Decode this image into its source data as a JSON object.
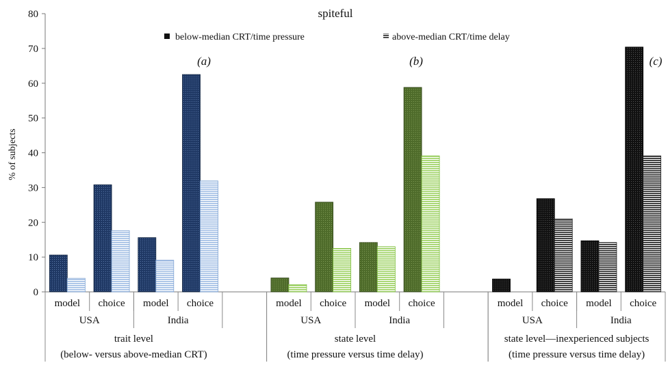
{
  "chart_data": {
    "type": "bar",
    "title": "spiteful",
    "ylabel": "% of subjects",
    "ylim": [
      0,
      80
    ],
    "yticks": [
      0,
      10,
      20,
      30,
      40,
      50,
      60,
      70,
      80
    ],
    "legend": {
      "position": "top-center",
      "entries": [
        {
          "label": "below-median CRT/time pressure",
          "marker": "solid dark square"
        },
        {
          "label": "above-median CRT/time delay",
          "marker": "horizontal stripes"
        }
      ]
    },
    "panels": [
      {
        "label": "(a)",
        "group_label_line1": "trait level",
        "group_label_line2": "(below- versus above-median CRT)",
        "colors": {
          "primary": "#1f3864",
          "secondary": "#a9c4e8"
        },
        "countries": [
          {
            "name": "USA",
            "categories": [
              {
                "name": "model",
                "values": [
                  10.6,
                  3.9
                ]
              },
              {
                "name": "choice",
                "values": [
                  30.8,
                  17.6
                ]
              }
            ]
          },
          {
            "name": "India",
            "categories": [
              {
                "name": "model",
                "values": [
                  15.6,
                  9.1
                ]
              },
              {
                "name": "choice",
                "values": [
                  62.5,
                  31.9
                ]
              }
            ]
          }
        ]
      },
      {
        "label": "(b)",
        "group_label_line1": "state level",
        "group_label_line2": "(time pressure versus time delay)",
        "colors": {
          "primary": "#4e6b2a",
          "secondary": "#a4d36b"
        },
        "countries": [
          {
            "name": "USA",
            "categories": [
              {
                "name": "model",
                "values": [
                  4.0,
                  2.1
                ]
              },
              {
                "name": "choice",
                "values": [
                  25.8,
                  12.5
                ]
              }
            ]
          },
          {
            "name": "India",
            "categories": [
              {
                "name": "model",
                "values": [
                  14.2,
                  13.0
                ]
              },
              {
                "name": "choice",
                "values": [
                  58.8,
                  39.1
                ]
              }
            ]
          }
        ]
      },
      {
        "label": "(c)",
        "group_label_line1": "state level—inexperienced subjects",
        "group_label_line2": "(time pressure versus time delay)",
        "colors": {
          "primary": "#111111",
          "secondary": "#555555"
        },
        "countries": [
          {
            "name": "USA",
            "categories": [
              {
                "name": "model",
                "values": [
                  3.7,
                  0
                ]
              },
              {
                "name": "choice",
                "values": [
                  26.8,
                  21.0
                ]
              }
            ]
          },
          {
            "name": "India",
            "categories": [
              {
                "name": "model",
                "values": [
                  14.7,
                  14.2
                ]
              },
              {
                "name": "choice",
                "values": [
                  70.4,
                  39.1
                ]
              }
            ]
          }
        ]
      }
    ]
  }
}
